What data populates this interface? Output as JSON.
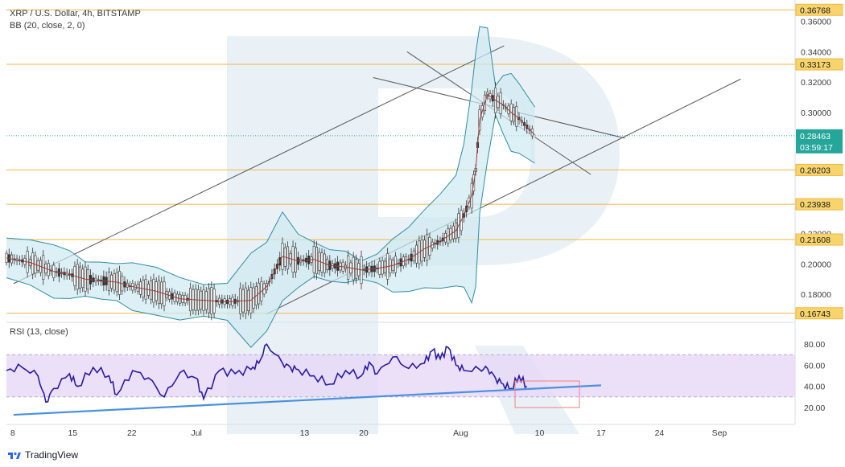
{
  "header": {
    "symbol_line": "XRP / U.S. Dollar, 4h, BITSTAMP",
    "indicator_line": "BB (20, close, 2, 0)",
    "rsi_line": "RSI (13, close)"
  },
  "footer": {
    "brand": "TradingView"
  },
  "colors": {
    "level_line": "#f0b641",
    "level_label_bg": "#f8d56b",
    "current_price_bg": "#26a69a",
    "rsi_line": "#2b1aa0",
    "rsi_band": "#e6d6f7",
    "trendline": "#4a90e2",
    "channel_line": "#555555",
    "bb_fill": "#cfe9f1",
    "bb_line": "#2f8ea3",
    "bb_basis": "#a33b3b",
    "watermark": "#e3ecf3",
    "highlight_box": "#f08080"
  },
  "chart_data": [
    {
      "type": "line",
      "title": "XRP / U.S. Dollar, 4h, BITSTAMP",
      "indicator": "BB (20, close, 2, 0)",
      "xlabel": "",
      "ylabel": "",
      "x_ticks": [
        "8",
        "15",
        "22",
        "Jul",
        "13",
        "20",
        "Aug",
        "10",
        "17",
        "24",
        "Sep"
      ],
      "ylim": [
        0.162,
        0.371
      ],
      "y_ticks": [
        0.36,
        0.34,
        0.32,
        0.3,
        0.28,
        0.26,
        0.24,
        0.22,
        0.2,
        0.18
      ],
      "y_tick_labels": [
        "0.36000",
        "0.34000",
        "0.32000",
        "0.30000",
        "",
        "",
        "",
        "0.22000",
        "0.20000",
        "0.18000"
      ],
      "horizontal_levels": [
        {
          "value": 0.36768,
          "label": "0.36768"
        },
        {
          "value": 0.33173,
          "label": "0.33173"
        },
        {
          "value": 0.26203,
          "label": "0.26203"
        },
        {
          "value": 0.23938,
          "label": "0.23938"
        },
        {
          "value": 0.21608,
          "label": "0.21608"
        },
        {
          "value": 0.16743,
          "label": "0.16743"
        }
      ],
      "current_price": {
        "value": 0.28463,
        "label": "0.28463",
        "countdown": "03:59:17"
      },
      "series": [
        {
          "x": [
            0,
            3,
            6,
            8,
            10,
            12,
            14,
            16,
            19,
            22,
            25,
            28,
            31,
            33,
            35,
            37,
            39,
            41,
            43,
            45,
            47,
            49,
            51,
            53,
            55,
            57,
            58,
            59,
            59.5,
            60,
            61,
            62,
            63,
            64,
            65,
            67
          ],
          "values": [
            0.204,
            0.201,
            0.195,
            0.193,
            0.19,
            0.189,
            0.188,
            0.185,
            0.182,
            0.177,
            0.176,
            0.175,
            0.176,
            0.185,
            0.205,
            0.202,
            0.203,
            0.199,
            0.198,
            0.196,
            0.197,
            0.199,
            0.203,
            0.21,
            0.215,
            0.222,
            0.232,
            0.245,
            0.262,
            0.295,
            0.312,
            0.308,
            0.305,
            0.3,
            0.296,
            0.285
          ]
        }
      ],
      "channel_lines": [
        {
          "from": {
            "x": 0.9,
            "y": 0.187
          },
          "to": {
            "x": 63.1,
            "y": 0.344
          }
        },
        {
          "from": {
            "x": 33.0,
            "y": 0.167
          },
          "to": {
            "x": 93.1,
            "y": 0.322
          }
        },
        {
          "from": {
            "x": 46.5,
            "y": 0.323
          },
          "to": {
            "x": 78.4,
            "y": 0.283
          }
        },
        {
          "from": {
            "x": 50.8,
            "y": 0.34
          },
          "to": {
            "x": 74.1,
            "y": 0.259
          }
        }
      ]
    },
    {
      "type": "line",
      "title": "RSI (13, close)",
      "xlabel": "",
      "ylabel": "",
      "ylim": [
        10,
        100
      ],
      "y_ticks": [
        80,
        60,
        40,
        20
      ],
      "y_tick_labels": [
        "80.00",
        "60.00",
        "40.00",
        "20.00"
      ],
      "bands": [
        70,
        30
      ],
      "series": [
        {
          "x": [
            0,
            2,
            4,
            5,
            6,
            8,
            9,
            11,
            13,
            14,
            16,
            18,
            20,
            22,
            24,
            25,
            27,
            29,
            31,
            32,
            33,
            35,
            36,
            37,
            39,
            41,
            43,
            45,
            46,
            47,
            49,
            51,
            53,
            54,
            55,
            56,
            57,
            58,
            60,
            61,
            62,
            63,
            64,
            65,
            66
          ],
          "values": [
            55,
            58,
            50,
            25,
            38,
            52,
            40,
            58,
            50,
            32,
            55,
            48,
            30,
            53,
            48,
            28,
            55,
            52,
            56,
            62,
            80,
            62,
            58,
            56,
            50,
            42,
            55,
            50,
            63,
            52,
            68,
            57,
            62,
            74,
            66,
            77,
            60,
            55,
            56,
            57,
            48,
            42,
            38,
            50,
            40
          ]
        }
      ],
      "trendline": {
        "from": {
          "x": 0.9,
          "y": 13
        },
        "to": {
          "x": 75.4,
          "y": 41
        }
      }
    }
  ]
}
